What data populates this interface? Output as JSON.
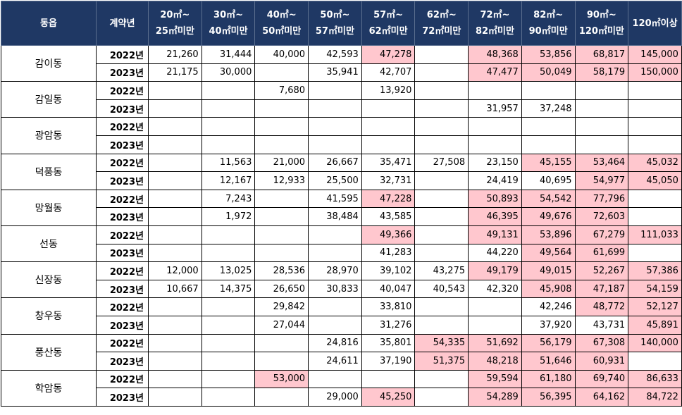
{
  "headers": [
    "동읍",
    "계약년",
    "20㎡~\n25㎡미만",
    "30㎡~\n40㎡미만",
    "40㎡~\n50㎡미만",
    "50㎡~\n57㎡미만",
    "57㎡~\n62㎡미만",
    "62㎡~\n72㎡미만",
    "72㎡~\n82㎡미만",
    "82㎡~\n90㎡미만",
    "90㎡~\n120㎡미만",
    "120㎡이상"
  ],
  "highlight_color": "#ffc7ce",
  "header_color": "#1f3864",
  "groups": [
    {
      "dong": "감이동",
      "rows": [
        {
          "year": "2022년",
          "cells": [
            "21,260",
            "31,444",
            "40,000",
            "42,593",
            "47,278",
            "",
            "48,368",
            "53,856",
            "68,817",
            "145,000"
          ],
          "hl": [
            4,
            6,
            7,
            8,
            9
          ]
        },
        {
          "year": "2023년",
          "cells": [
            "21,175",
            "30,000",
            "",
            "35,941",
            "42,707",
            "",
            "47,477",
            "50,049",
            "58,179",
            "150,000"
          ],
          "hl": [
            6,
            7,
            8,
            9
          ]
        }
      ]
    },
    {
      "dong": "감일동",
      "rows": [
        {
          "year": "2022년",
          "cells": [
            "",
            "",
            "7,680",
            "",
            "13,920",
            "",
            "",
            "",
            "",
            ""
          ],
          "hl": []
        },
        {
          "year": "2023년",
          "cells": [
            "",
            "",
            "",
            "",
            "",
            "",
            "31,957",
            "37,248",
            "",
            ""
          ],
          "hl": []
        }
      ]
    },
    {
      "dong": "광암동",
      "rows": [
        {
          "year": "2022년",
          "cells": [
            "",
            "",
            "",
            "",
            "",
            "",
            "",
            "",
            "",
            ""
          ],
          "hl": []
        },
        {
          "year": "2023년",
          "cells": [
            "",
            "",
            "",
            "",
            "",
            "",
            "",
            "",
            "",
            ""
          ],
          "hl": []
        }
      ]
    },
    {
      "dong": "덕풍동",
      "rows": [
        {
          "year": "2022년",
          "cells": [
            "",
            "11,563",
            "21,000",
            "26,667",
            "35,471",
            "27,508",
            "23,150",
            "45,155",
            "53,464",
            "45,032"
          ],
          "hl": [
            7,
            8,
            9
          ]
        },
        {
          "year": "2023년",
          "cells": [
            "",
            "12,167",
            "12,933",
            "25,500",
            "32,731",
            "",
            "24,419",
            "40,695",
            "54,977",
            "45,050"
          ],
          "hl": [
            8,
            9
          ]
        }
      ]
    },
    {
      "dong": "망월동",
      "rows": [
        {
          "year": "2022년",
          "cells": [
            "",
            "7,243",
            "",
            "41,595",
            "47,228",
            "",
            "50,893",
            "54,542",
            "77,796",
            ""
          ],
          "hl": [
            4,
            6,
            7,
            8
          ]
        },
        {
          "year": "2023년",
          "cells": [
            "",
            "1,972",
            "",
            "38,484",
            "43,585",
            "",
            "46,395",
            "49,676",
            "72,603",
            ""
          ],
          "hl": [
            6,
            7,
            8
          ]
        }
      ]
    },
    {
      "dong": "선동",
      "rows": [
        {
          "year": "2022년",
          "cells": [
            "",
            "",
            "",
            "",
            "49,366",
            "",
            "49,131",
            "53,896",
            "67,279",
            "111,033"
          ],
          "hl": [
            4,
            6,
            7,
            8,
            9
          ]
        },
        {
          "year": "2023년",
          "cells": [
            "",
            "",
            "",
            "",
            "41,283",
            "",
            "44,220",
            "49,564",
            "61,699",
            ""
          ],
          "hl": [
            7,
            8
          ]
        }
      ]
    },
    {
      "dong": "신장동",
      "rows": [
        {
          "year": "2022년",
          "cells": [
            "12,000",
            "13,025",
            "28,536",
            "28,970",
            "39,102",
            "43,275",
            "49,179",
            "49,015",
            "52,267",
            "57,386"
          ],
          "hl": [
            6,
            7,
            8,
            9
          ]
        },
        {
          "year": "2023년",
          "cells": [
            "10,667",
            "14,375",
            "26,650",
            "30,833",
            "40,047",
            "40,543",
            "42,320",
            "45,908",
            "47,187",
            "54,159"
          ],
          "hl": [
            7,
            8,
            9
          ]
        }
      ]
    },
    {
      "dong": "창우동",
      "rows": [
        {
          "year": "2022년",
          "cells": [
            "",
            "",
            "29,842",
            "",
            "33,810",
            "",
            "",
            "42,246",
            "48,772",
            "52,127"
          ],
          "hl": [
            8,
            9
          ]
        },
        {
          "year": "2023년",
          "cells": [
            "",
            "",
            "27,044",
            "",
            "31,276",
            "",
            "",
            "37,920",
            "43,731",
            "45,891"
          ],
          "hl": [
            9
          ]
        }
      ]
    },
    {
      "dong": "풍산동",
      "rows": [
        {
          "year": "2022년",
          "cells": [
            "",
            "",
            "",
            "24,816",
            "35,801",
            "54,335",
            "51,692",
            "56,179",
            "67,308",
            "140,000"
          ],
          "hl": [
            5,
            6,
            7,
            8,
            9
          ]
        },
        {
          "year": "2023년",
          "cells": [
            "",
            "",
            "",
            "24,611",
            "37,190",
            "51,375",
            "48,218",
            "51,646",
            "60,931",
            ""
          ],
          "hl": [
            5,
            6,
            7,
            8
          ]
        }
      ]
    },
    {
      "dong": "학암동",
      "rows": [
        {
          "year": "2022년",
          "cells": [
            "",
            "",
            "53,000",
            "",
            "",
            "",
            "59,594",
            "61,180",
            "69,740",
            "86,633"
          ],
          "hl": [
            2,
            6,
            7,
            8,
            9
          ]
        },
        {
          "year": "2023년",
          "cells": [
            "",
            "",
            "",
            "29,000",
            "45,250",
            "",
            "54,289",
            "56,395",
            "64,162",
            "84,722"
          ],
          "hl": [
            4,
            6,
            7,
            8,
            9
          ]
        }
      ]
    }
  ]
}
